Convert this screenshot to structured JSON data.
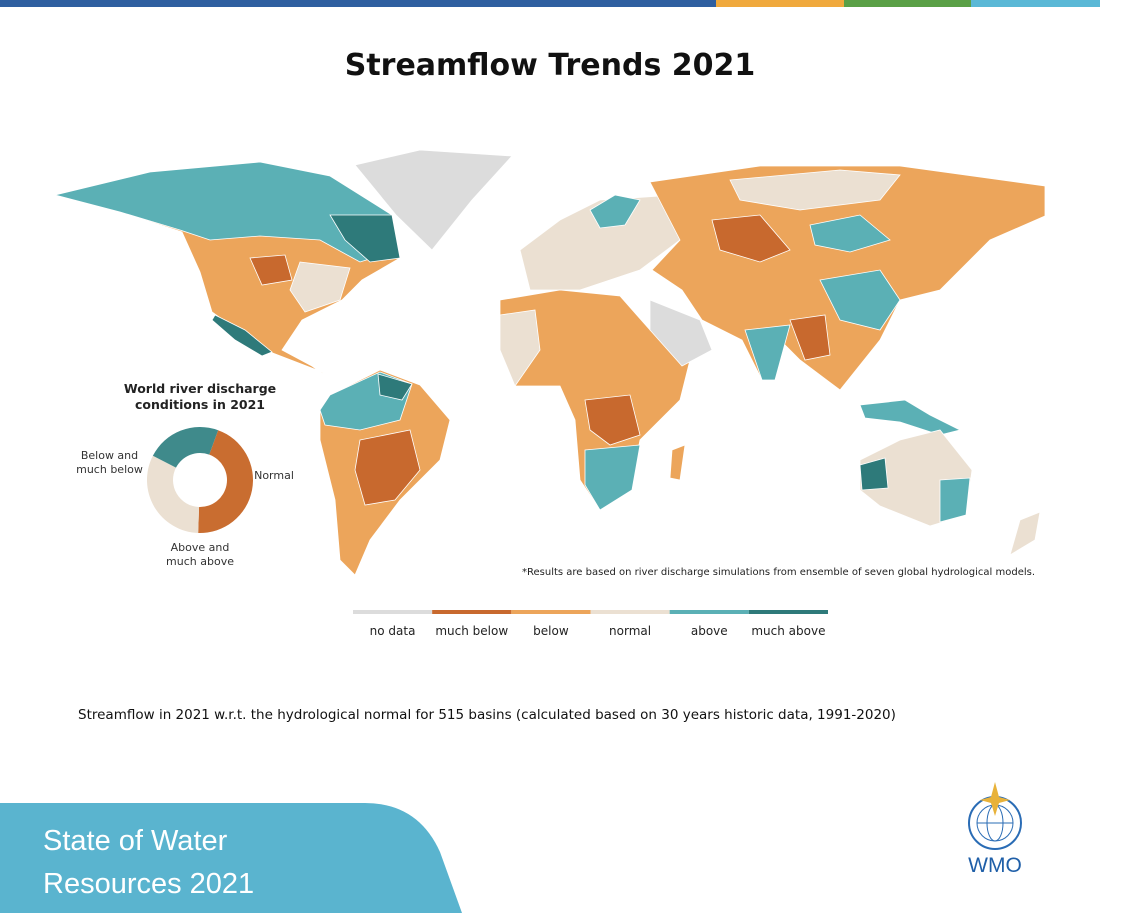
{
  "title": "Streamflow Trends 2021",
  "chart_data": {
    "type": "donut",
    "title": "World river discharge conditions in 2021",
    "categories": [
      "Below and much below",
      "Normal",
      "Above and much above"
    ],
    "values": [
      45,
      32,
      23
    ],
    "colors": [
      "#c96d30",
      "#ebe0d2",
      "#3f8a8b"
    ]
  },
  "footnote": "*Results are based on river discharge simulations from ensemble of seven global hydrological models.",
  "legend": {
    "items": [
      {
        "label": "no data",
        "color": "#dcdcdc"
      },
      {
        "label": "much below",
        "color": "#c8692e"
      },
      {
        "label": "below",
        "color": "#eca55b"
      },
      {
        "label": "normal",
        "color": "#ebe0d2"
      },
      {
        "label": "above",
        "color": "#5bb0b5"
      },
      {
        "label": "much above",
        "color": "#2e7a7a"
      }
    ]
  },
  "caption": "Streamflow in 2021 w.r.t. the hydrological normal for 515 basins (calculated based on 30 years historic data, 1991-2020)",
  "footer": {
    "lines": [
      "State of Water",
      "Resources 2021"
    ],
    "logo": "WMO"
  }
}
